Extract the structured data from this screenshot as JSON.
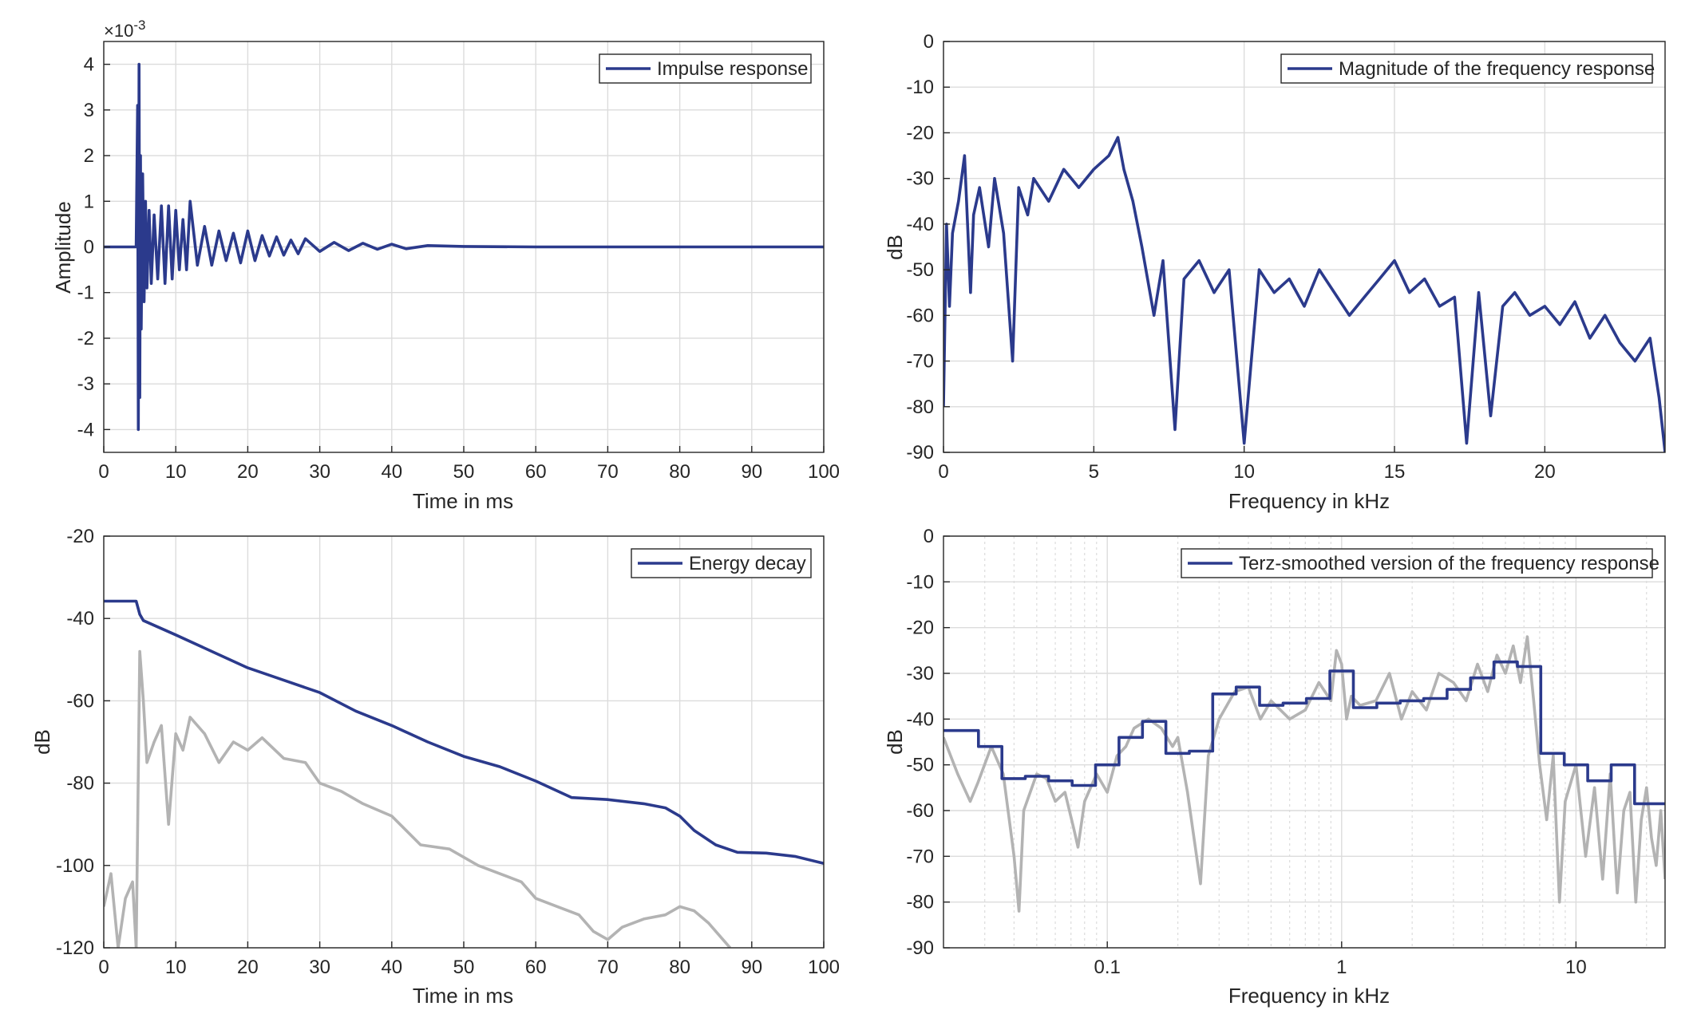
{
  "colors": {
    "series": "#2b3a8c",
    "background_series": "#b3b3b3",
    "axis": "#262626",
    "grid": "#dcdcdc"
  },
  "chart_data": [
    {
      "type": "line",
      "id": "impulse",
      "xlabel": "Time in ms",
      "ylabel": "Amplitude",
      "exponent_label": "×10",
      "exponent_power": "-3",
      "xlim": [
        0,
        100
      ],
      "ylim": [
        -4.5,
        4.5
      ],
      "xticks": [
        0,
        10,
        20,
        30,
        40,
        50,
        60,
        70,
        80,
        90,
        100
      ],
      "xtick_labels": [
        "0",
        "10",
        "20",
        "30",
        "40",
        "50",
        "60",
        "70",
        "80",
        "90",
        "100"
      ],
      "yticks": [
        4,
        3,
        2,
        1,
        0,
        -1,
        -2,
        -3,
        -4
      ],
      "ytick_labels": [
        "4",
        "3",
        "2",
        "1",
        "0",
        "-1",
        "-2",
        "-3",
        "-4"
      ],
      "grid": true,
      "legend": "top-right",
      "series": [
        {
          "name": "Impulse response",
          "x": [
            0,
            4.5,
            4.7,
            4.8,
            4.9,
            5.0,
            5.1,
            5.2,
            5.4,
            5.6,
            5.8,
            6.0,
            6.3,
            6.6,
            7.0,
            7.5,
            8.0,
            8.5,
            9.0,
            9.5,
            10.0,
            10.5,
            11.0,
            11.5,
            12.0,
            13,
            14,
            15,
            16,
            17,
            18,
            19,
            20,
            21,
            22,
            23,
            24,
            25,
            26,
            27,
            28,
            30,
            32,
            34,
            36,
            38,
            40,
            42,
            45,
            50,
            60,
            100
          ],
          "y": [
            0,
            0,
            3.1,
            -4.0,
            4.0,
            -3.3,
            2.0,
            -1.8,
            1.6,
            -1.2,
            1.0,
            -0.9,
            0.8,
            -0.8,
            0.7,
            -0.7,
            0.9,
            -0.8,
            0.9,
            -0.7,
            0.8,
            -0.5,
            0.6,
            -0.5,
            1.0,
            -0.4,
            0.45,
            -0.4,
            0.35,
            -0.3,
            0.3,
            -0.35,
            0.35,
            -0.3,
            0.25,
            -0.2,
            0.22,
            -0.18,
            0.15,
            -0.15,
            0.18,
            -0.1,
            0.1,
            -0.08,
            0.08,
            -0.05,
            0.06,
            -0.04,
            0.03,
            0.01,
            0.0,
            0.0
          ]
        }
      ]
    },
    {
      "type": "line",
      "id": "magnitude",
      "xlabel": "Frequency in kHz",
      "ylabel": "dB",
      "xlim": [
        0,
        24
      ],
      "ylim": [
        -90,
        0
      ],
      "xticks": [
        0,
        5,
        10,
        15,
        20
      ],
      "xtick_labels": [
        "0",
        "5",
        "10",
        "15",
        "20"
      ],
      "yticks": [
        0,
        -10,
        -20,
        -30,
        -40,
        -50,
        -60,
        -70,
        -80,
        -90
      ],
      "ytick_labels": [
        "0",
        "-10",
        "-20",
        "-30",
        "-40",
        "-50",
        "-60",
        "-70",
        "-80",
        "-90"
      ],
      "grid": true,
      "legend": "top-right",
      "series": [
        {
          "name": "Magnitude of the frequency response",
          "x": [
            0,
            0.1,
            0.2,
            0.3,
            0.5,
            0.7,
            0.9,
            1.0,
            1.2,
            1.5,
            1.7,
            2.0,
            2.3,
            2.5,
            2.8,
            3.0,
            3.5,
            4.0,
            4.5,
            5.0,
            5.5,
            5.8,
            6.0,
            6.3,
            6.6,
            7.0,
            7.3,
            7.7,
            8.0,
            8.5,
            9.0,
            9.5,
            10.0,
            10.5,
            11.0,
            11.5,
            12.0,
            12.5,
            13.0,
            13.5,
            14.0,
            14.5,
            15.0,
            15.5,
            16.0,
            16.5,
            17.0,
            17.4,
            17.8,
            18.2,
            18.6,
            19.0,
            19.5,
            20.0,
            20.5,
            21.0,
            21.5,
            22.0,
            22.5,
            23.0,
            23.5,
            23.8,
            24.0
          ],
          "y": [
            -80,
            -40,
            -58,
            -42,
            -35,
            -25,
            -55,
            -38,
            -32,
            -45,
            -30,
            -42,
            -70,
            -32,
            -38,
            -30,
            -35,
            -28,
            -32,
            -28,
            -25,
            -21,
            -28,
            -35,
            -45,
            -60,
            -48,
            -85,
            -52,
            -48,
            -55,
            -50,
            -88,
            -50,
            -55,
            -52,
            -58,
            -50,
            -55,
            -60,
            -56,
            -52,
            -48,
            -55,
            -52,
            -58,
            -56,
            -88,
            -55,
            -82,
            -58,
            -55,
            -60,
            -58,
            -62,
            -57,
            -65,
            -60,
            -66,
            -70,
            -65,
            -78,
            -90
          ]
        }
      ]
    },
    {
      "type": "line",
      "id": "energy",
      "xlabel": "Time in ms",
      "ylabel": "dB",
      "xlim": [
        0,
        100
      ],
      "ylim": [
        -120,
        -20
      ],
      "xticks": [
        0,
        10,
        20,
        30,
        40,
        50,
        60,
        70,
        80,
        90,
        100
      ],
      "xtick_labels": [
        "0",
        "10",
        "20",
        "30",
        "40",
        "50",
        "60",
        "70",
        "80",
        "90",
        "100"
      ],
      "yticks": [
        -20,
        -40,
        -60,
        -80,
        -100,
        -120
      ],
      "ytick_labels": [
        "-20",
        "-40",
        "-60",
        "-80",
        "-100",
        "-120"
      ],
      "grid": true,
      "legend": "top-right",
      "series": [
        {
          "name": "Energy decay",
          "x": [
            0,
            4.5,
            5.0,
            5.5,
            10,
            15,
            20,
            25,
            30,
            35,
            40,
            45,
            50,
            55,
            60,
            65,
            70,
            75,
            78,
            80,
            82,
            85,
            88,
            92,
            96,
            100
          ],
          "y": [
            -35.8,
            -35.8,
            -39,
            -40.5,
            -44,
            -48,
            -52,
            -55,
            -58,
            -62.5,
            -66,
            -70,
            -73.5,
            -76,
            -79.5,
            -83.5,
            -84,
            -85,
            -86,
            -88,
            -91.5,
            -95,
            -96.8,
            -97,
            -97.8,
            -99.5
          ]
        },
        {
          "name": "",
          "x": [
            0,
            1,
            2,
            3,
            4,
            4.5,
            5,
            5.5,
            6,
            7,
            8,
            9,
            10,
            11,
            12,
            14,
            16,
            18,
            20,
            22,
            25,
            28,
            30,
            33,
            36,
            40,
            44,
            48,
            52,
            55,
            58,
            60,
            63,
            66,
            68,
            70,
            72,
            75,
            78,
            80,
            82,
            84,
            86,
            87
          ],
          "y": [
            -110,
            -102,
            -120,
            -108,
            -104,
            -120,
            -48,
            -60,
            -75,
            -70,
            -66,
            -90,
            -68,
            -72,
            -64,
            -68,
            -75,
            -70,
            -72,
            -69,
            -74,
            -75,
            -80,
            -82,
            -85,
            -88,
            -95,
            -96,
            -100,
            -102,
            -104,
            -108,
            -110,
            -112,
            -116,
            -118,
            -115,
            -113,
            -112,
            -110,
            -111,
            -114,
            -118,
            -120
          ]
        }
      ]
    },
    {
      "type": "line",
      "id": "terz",
      "xlabel": "Frequency in kHz",
      "ylabel": "dB",
      "xscale": "log",
      "xlim": [
        0.02,
        24
      ],
      "ylim": [
        -90,
        0
      ],
      "xticks": [
        0.1,
        1,
        10
      ],
      "xtick_labels": [
        "0.1",
        "1",
        "10"
      ],
      "yticks": [
        0,
        -10,
        -20,
        -30,
        -40,
        -50,
        -60,
        -70,
        -80,
        -90
      ],
      "ytick_labels": [
        "0",
        "-10",
        "-20",
        "-30",
        "-40",
        "-50",
        "-60",
        "-70",
        "-80",
        "-90"
      ],
      "grid": true,
      "legend": "top-right",
      "series": [
        {
          "name": "Terz-smoothed version of the frequency response",
          "step": true,
          "edges": [
            0.02,
            0.0282,
            0.0355,
            0.0447,
            0.0562,
            0.0708,
            0.0891,
            0.1122,
            0.1413,
            0.1778,
            0.2239,
            0.2818,
            0.3548,
            0.4467,
            0.5623,
            0.7079,
            0.8913,
            1.122,
            1.413,
            1.778,
            2.239,
            2.818,
            3.548,
            4.467,
            5.623,
            7.079,
            8.913,
            11.22,
            14.13,
            17.78,
            24
          ],
          "values": [
            -42.5,
            -46,
            -53,
            -52.5,
            -53.5,
            -54.5,
            -50,
            -44,
            -40.5,
            -47.5,
            -47,
            -34.5,
            -33,
            -37,
            -36.5,
            -35.5,
            -29.5,
            -37.5,
            -36.5,
            -36,
            -35.5,
            -33.5,
            -31,
            -27.5,
            -28.5,
            -47.5,
            -50,
            -53.5,
            -50,
            -58.5
          ]
        },
        {
          "name": "",
          "x": [
            0.02,
            0.023,
            0.026,
            0.028,
            0.032,
            0.036,
            0.04,
            0.042,
            0.044,
            0.05,
            0.055,
            0.06,
            0.066,
            0.072,
            0.075,
            0.08,
            0.09,
            0.1,
            0.11,
            0.12,
            0.13,
            0.15,
            0.17,
            0.19,
            0.2,
            0.22,
            0.25,
            0.27,
            0.3,
            0.35,
            0.4,
            0.45,
            0.5,
            0.6,
            0.7,
            0.8,
            0.9,
            0.95,
            1.0,
            1.05,
            1.1,
            1.2,
            1.4,
            1.6,
            1.8,
            2.0,
            2.3,
            2.6,
            3.0,
            3.4,
            3.8,
            4.2,
            4.6,
            5.0,
            5.4,
            5.8,
            6.2,
            6.6,
            7.0,
            7.5,
            8.0,
            8.5,
            9.0,
            10,
            11,
            12,
            13,
            14,
            15,
            16,
            17,
            18,
            19,
            20,
            21,
            22,
            23,
            24
          ],
          "y": [
            -44,
            -52,
            -58,
            -54,
            -46,
            -52,
            -70,
            -82,
            -60,
            -52,
            -53,
            -58,
            -56,
            -64,
            -68,
            -58,
            -52,
            -56,
            -48,
            -46,
            -42,
            -40,
            -42,
            -46,
            -44,
            -56,
            -76,
            -48,
            -40,
            -34,
            -33,
            -40,
            -36,
            -40,
            -38,
            -32,
            -36,
            -25,
            -28,
            -40,
            -35,
            -37,
            -36,
            -30,
            -40,
            -34,
            -38,
            -30,
            -32,
            -36,
            -28,
            -34,
            -26,
            -30,
            -24,
            -32,
            -22,
            -36,
            -50,
            -62,
            -48,
            -80,
            -58,
            -50,
            -70,
            -55,
            -75,
            -52,
            -78,
            -60,
            -56,
            -80,
            -62,
            -55,
            -66,
            -72,
            -60,
            -75
          ]
        }
      ]
    }
  ]
}
